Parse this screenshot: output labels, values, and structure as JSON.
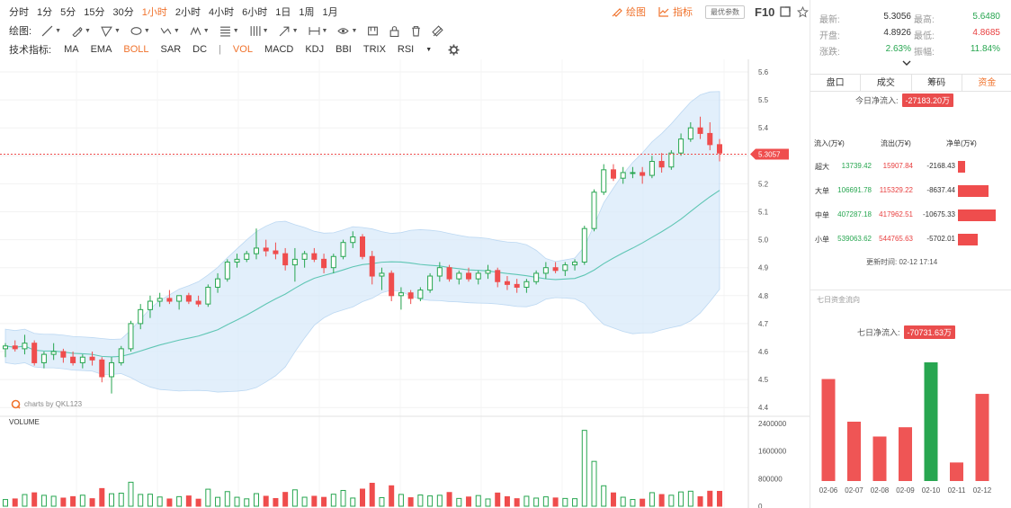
{
  "toolbar": {
    "periods": [
      "分时",
      "1分",
      "5分",
      "15分",
      "30分",
      "1小时",
      "2小时",
      "4小时",
      "6小时",
      "1日",
      "1周",
      "1月"
    ],
    "active_period": "1小时",
    "draw_label": "绘图:",
    "indicator_label": "技术指标:",
    "indicators": [
      "MA",
      "EMA",
      "BOLL",
      "SAR",
      "DC",
      "|",
      "VOL",
      "MACD",
      "KDJ",
      "BBI",
      "TRIX",
      "RSI"
    ],
    "drawing_btn": "绘图",
    "indicator_btn": "指标",
    "best_param_btn": "最优参数",
    "f10_label": "F10",
    "accent_color": "#f0732d"
  },
  "chart": {
    "watermark": "charts by QKL123",
    "current_price_label": "5.3057",
    "price_axis": [
      "5.6",
      "5.5",
      "5.4",
      "5.3",
      "5.2",
      "5.1",
      "5.0",
      "4.9",
      "4.8",
      "4.7",
      "4.6",
      "4.5",
      "4.4"
    ],
    "volume_label": "VOLUME",
    "volume_axis": [
      "2400000",
      "1600000",
      "800000",
      "0"
    ],
    "up_color": "#27a650",
    "down_color": "#ef4d4d",
    "band_color": "#d8eaf9"
  },
  "chart_data": [
    {
      "type": "candlestick",
      "y_range": [
        4.4,
        5.6
      ],
      "candles_approx": [
        [
          4.61,
          4.63,
          4.58,
          4.62
        ],
        [
          4.62,
          4.64,
          4.6,
          4.61
        ],
        [
          4.61,
          4.66,
          4.59,
          4.63
        ],
        [
          4.63,
          4.64,
          4.55,
          4.56
        ],
        [
          4.56,
          4.6,
          4.54,
          4.59
        ],
        [
          4.59,
          4.63,
          4.57,
          4.6
        ],
        [
          4.6,
          4.61,
          4.56,
          4.58
        ],
        [
          4.58,
          4.6,
          4.55,
          4.56
        ],
        [
          4.56,
          4.59,
          4.54,
          4.58
        ],
        [
          4.58,
          4.6,
          4.55,
          4.57
        ],
        [
          4.57,
          4.58,
          4.49,
          4.51
        ],
        [
          4.51,
          4.58,
          4.45,
          4.56
        ],
        [
          4.56,
          4.62,
          4.55,
          4.61
        ],
        [
          4.61,
          4.71,
          4.6,
          4.7
        ],
        [
          4.7,
          4.77,
          4.68,
          4.75
        ],
        [
          4.75,
          4.8,
          4.72,
          4.78
        ],
        [
          4.78,
          4.81,
          4.76,
          4.79
        ],
        [
          4.79,
          4.82,
          4.77,
          4.78
        ],
        [
          4.78,
          4.8,
          4.75,
          4.8
        ],
        [
          4.8,
          4.81,
          4.77,
          4.78
        ],
        [
          4.78,
          4.8,
          4.76,
          4.77
        ],
        [
          4.77,
          4.84,
          4.76,
          4.83
        ],
        [
          4.83,
          4.88,
          4.81,
          4.86
        ],
        [
          4.86,
          4.93,
          4.85,
          4.92
        ],
        [
          4.92,
          4.95,
          4.9,
          4.93
        ],
        [
          4.93,
          4.96,
          4.92,
          4.95
        ],
        [
          4.95,
          5.04,
          4.93,
          4.97
        ],
        [
          4.97,
          5.0,
          4.94,
          4.96
        ],
        [
          4.96,
          4.99,
          4.93,
          4.95
        ],
        [
          4.95,
          4.97,
          4.89,
          4.91
        ],
        [
          4.91,
          4.97,
          4.85,
          4.93
        ],
        [
          4.93,
          4.96,
          4.9,
          4.95
        ],
        [
          4.95,
          4.97,
          4.92,
          4.93
        ],
        [
          4.93,
          4.95,
          4.88,
          4.9
        ],
        [
          4.9,
          4.95,
          4.88,
          4.94
        ],
        [
          4.94,
          5.0,
          4.93,
          4.99
        ],
        [
          4.99,
          5.03,
          4.97,
          5.01
        ],
        [
          5.01,
          5.02,
          4.93,
          4.94
        ],
        [
          4.94,
          4.96,
          4.84,
          4.87
        ],
        [
          4.87,
          4.9,
          4.82,
          4.88
        ],
        [
          4.88,
          4.89,
          4.78,
          4.8
        ],
        [
          4.8,
          4.83,
          4.75,
          4.81
        ],
        [
          4.81,
          4.82,
          4.77,
          4.79
        ],
        [
          4.79,
          4.83,
          4.78,
          4.82
        ],
        [
          4.82,
          4.88,
          4.81,
          4.87
        ],
        [
          4.87,
          4.92,
          4.85,
          4.9
        ],
        [
          4.9,
          4.91,
          4.85,
          4.86
        ],
        [
          4.86,
          4.89,
          4.84,
          4.88
        ],
        [
          4.88,
          4.9,
          4.85,
          4.86
        ],
        [
          4.86,
          4.89,
          4.84,
          4.88
        ],
        [
          4.88,
          4.91,
          4.86,
          4.89
        ],
        [
          4.89,
          4.9,
          4.83,
          4.85
        ],
        [
          4.85,
          4.87,
          4.82,
          4.84
        ],
        [
          4.84,
          4.86,
          4.81,
          4.83
        ],
        [
          4.83,
          4.86,
          4.81,
          4.85
        ],
        [
          4.85,
          4.89,
          4.84,
          4.88
        ],
        [
          4.88,
          4.92,
          4.86,
          4.9
        ],
        [
          4.9,
          4.92,
          4.88,
          4.89
        ],
        [
          4.89,
          4.92,
          4.87,
          4.91
        ],
        [
          4.91,
          4.93,
          4.89,
          4.92
        ],
        [
          4.92,
          5.05,
          4.91,
          5.04
        ],
        [
          5.04,
          5.18,
          5.03,
          5.17
        ],
        [
          5.17,
          5.27,
          5.16,
          5.25
        ],
        [
          5.25,
          5.27,
          5.21,
          5.22
        ],
        [
          5.22,
          5.26,
          5.2,
          5.24
        ],
        [
          5.24,
          5.26,
          5.22,
          5.24
        ],
        [
          5.24,
          5.26,
          5.2,
          5.23
        ],
        [
          5.23,
          5.3,
          5.22,
          5.28
        ],
        [
          5.28,
          5.31,
          5.24,
          5.26
        ],
        [
          5.26,
          5.32,
          5.25,
          5.31
        ],
        [
          5.31,
          5.38,
          5.3,
          5.36
        ],
        [
          5.36,
          5.42,
          5.35,
          5.4
        ],
        [
          5.4,
          5.44,
          5.36,
          5.38
        ],
        [
          5.38,
          5.42,
          5.32,
          5.34
        ],
        [
          5.34,
          5.36,
          5.28,
          5.31
        ]
      ]
    },
    {
      "type": "bar",
      "title": "VOLUME",
      "y_range": [
        0,
        2400000
      ]
    },
    {
      "type": "bar",
      "title": "七日资金流向",
      "categories": [
        "02-06",
        "02-07",
        "02-08",
        "02-09",
        "02-10",
        "02-11",
        "02-12"
      ],
      "values": [
        -55000,
        -32000,
        -24000,
        -29000,
        64000,
        -10000,
        -47000
      ],
      "colors": [
        "#ef5555",
        "#ef5555",
        "#ef5555",
        "#ef5555",
        "#27a650",
        "#ef5555",
        "#ef5555"
      ]
    }
  ],
  "quote": {
    "latest_label": "最新:",
    "latest": "5.3056",
    "high_label": "最高:",
    "high": "5.6480",
    "open_label": "开盘:",
    "open": "4.8926",
    "low_label": "最低:",
    "low": "4.8685",
    "change_label": "涨跌:",
    "change": "2.63%",
    "amp_label": "振幅:",
    "amp": "11.84%"
  },
  "panel_tabs": [
    "盘口",
    "成交",
    "筹码",
    "资金"
  ],
  "fund_flow": {
    "today_label": "今日净流入:",
    "today_value": "-27183.20万",
    "col_in": "流入(万¥)",
    "col_out": "流出(万¥)",
    "col_net": "净单(万¥)",
    "rows": [
      {
        "name": "超大",
        "in": "13739.42",
        "out": "15907.84",
        "net": "-2168.43",
        "ratio": 0.2
      },
      {
        "name": "大单",
        "in": "106691.78",
        "out": "115329.22",
        "net": "-8637.44",
        "ratio": 0.81
      },
      {
        "name": "中单",
        "in": "407287.18",
        "out": "417962.51",
        "net": "-10675.33",
        "ratio": 1.0
      },
      {
        "name": "小单",
        "in": "539063.62",
        "out": "544765.63",
        "net": "-5702.01",
        "ratio": 0.53
      }
    ],
    "update_time": "更新时间:  02-12 17:14"
  },
  "seven_day": {
    "title": "七日资金流向",
    "net_label": "七日净流入:",
    "net_value": "-70731.63万"
  }
}
